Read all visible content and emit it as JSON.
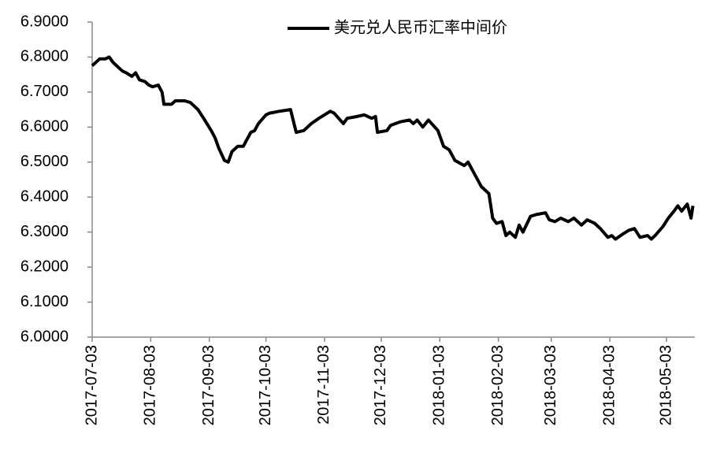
{
  "chart_data": {
    "type": "line",
    "x": [
      "2017-07-03",
      "2017-07-05",
      "2017-07-07",
      "2017-07-10",
      "2017-07-12",
      "2017-07-14",
      "2017-07-17",
      "2017-07-19",
      "2017-07-21",
      "2017-07-24",
      "2017-07-26",
      "2017-07-28",
      "2017-07-31",
      "2017-08-02",
      "2017-08-04",
      "2017-08-07",
      "2017-08-09",
      "2017-08-10",
      "2017-08-14",
      "2017-08-16",
      "2017-08-21",
      "2017-08-24",
      "2017-08-28",
      "2017-08-31",
      "2017-09-04",
      "2017-09-06",
      "2017-09-08",
      "2017-09-11",
      "2017-09-13",
      "2017-09-15",
      "2017-09-18",
      "2017-09-21",
      "2017-09-25",
      "2017-09-27",
      "2017-09-29",
      "2017-10-03",
      "2017-10-05",
      "2017-10-10",
      "2017-10-16",
      "2017-10-19",
      "2017-10-23",
      "2017-10-27",
      "2017-10-31",
      "2017-11-06",
      "2017-11-08",
      "2017-11-13",
      "2017-11-15",
      "2017-11-20",
      "2017-11-24",
      "2017-11-28",
      "2017-11-30",
      "2017-12-01",
      "2017-12-06",
      "2017-12-08",
      "2017-12-13",
      "2017-12-18",
      "2017-12-20",
      "2017-12-22",
      "2017-12-25",
      "2017-12-28",
      "2018-01-02",
      "2018-01-05",
      "2018-01-08",
      "2018-01-11",
      "2018-01-16",
      "2018-01-18",
      "2018-01-22",
      "2018-01-25",
      "2018-01-29",
      "2018-01-31",
      "2018-02-02",
      "2018-02-05",
      "2018-02-07",
      "2018-02-09",
      "2018-02-12",
      "2018-02-14",
      "2018-02-16",
      "2018-02-20",
      "2018-02-23",
      "2018-02-28",
      "2018-03-02",
      "2018-03-05",
      "2018-03-08",
      "2018-03-12",
      "2018-03-15",
      "2018-03-19",
      "2018-03-22",
      "2018-03-26",
      "2018-03-29",
      "2018-04-02",
      "2018-04-04",
      "2018-04-06",
      "2018-04-10",
      "2018-04-13",
      "2018-04-16",
      "2018-04-19",
      "2018-04-23",
      "2018-04-25",
      "2018-04-27",
      "2018-05-01",
      "2018-05-04",
      "2018-05-07",
      "2018-05-09",
      "2018-05-11",
      "2018-05-14",
      "2018-05-16",
      "2018-05-17"
    ],
    "series": [
      {
        "name": "美元兑人民币汇率中间价",
        "color": "#000000",
        "values": [
          6.775,
          6.785,
          6.795,
          6.795,
          6.8,
          6.785,
          6.77,
          6.76,
          6.755,
          6.745,
          6.755,
          6.735,
          6.73,
          6.72,
          6.715,
          6.72,
          6.7,
          6.665,
          6.665,
          6.675,
          6.675,
          6.67,
          6.65,
          6.625,
          6.59,
          6.57,
          6.54,
          6.505,
          6.5,
          6.53,
          6.545,
          6.545,
          6.585,
          6.59,
          6.61,
          6.635,
          6.64,
          6.645,
          6.65,
          6.585,
          6.59,
          6.61,
          6.625,
          6.645,
          6.64,
          6.61,
          6.625,
          6.63,
          6.635,
          6.625,
          6.63,
          6.585,
          6.59,
          6.605,
          6.615,
          6.62,
          6.61,
          6.62,
          6.6,
          6.62,
          6.59,
          6.545,
          6.535,
          6.505,
          6.49,
          6.5,
          6.46,
          6.43,
          6.41,
          6.34,
          6.325,
          6.33,
          6.29,
          6.3,
          6.285,
          6.32,
          6.3,
          6.345,
          6.35,
          6.355,
          6.335,
          6.33,
          6.34,
          6.33,
          6.34,
          6.32,
          6.335,
          6.325,
          6.31,
          6.285,
          6.29,
          6.28,
          6.295,
          6.305,
          6.31,
          6.285,
          6.29,
          6.28,
          6.29,
          6.315,
          6.34,
          6.36,
          6.375,
          6.36,
          6.38,
          6.34,
          6.375
        ]
      }
    ],
    "xlim": [
      "2017-07-03",
      "2018-05-18"
    ],
    "xticks": [
      "2017-07-03",
      "2017-08-03",
      "2017-09-03",
      "2017-10-03",
      "2017-11-03",
      "2017-12-03",
      "2018-01-03",
      "2018-02-03",
      "2018-03-03",
      "2018-04-03",
      "2018-05-03"
    ],
    "ylim": [
      6.0,
      6.9
    ],
    "yticks": [
      {
        "value": 6.0,
        "label": "6.0000"
      },
      {
        "value": 6.1,
        "label": "6.1000"
      },
      {
        "value": 6.2,
        "label": "6.2000"
      },
      {
        "value": 6.3,
        "label": "6.3000"
      },
      {
        "value": 6.4,
        "label": "6.4000"
      },
      {
        "value": 6.5,
        "label": "6.5000"
      },
      {
        "value": 6.6,
        "label": "6.6000"
      },
      {
        "value": 6.7,
        "label": "6.7000"
      },
      {
        "value": 6.8,
        "label": "6.8000"
      },
      {
        "value": 6.9,
        "label": "6.9000"
      }
    ],
    "grid": false,
    "legend": "top"
  }
}
